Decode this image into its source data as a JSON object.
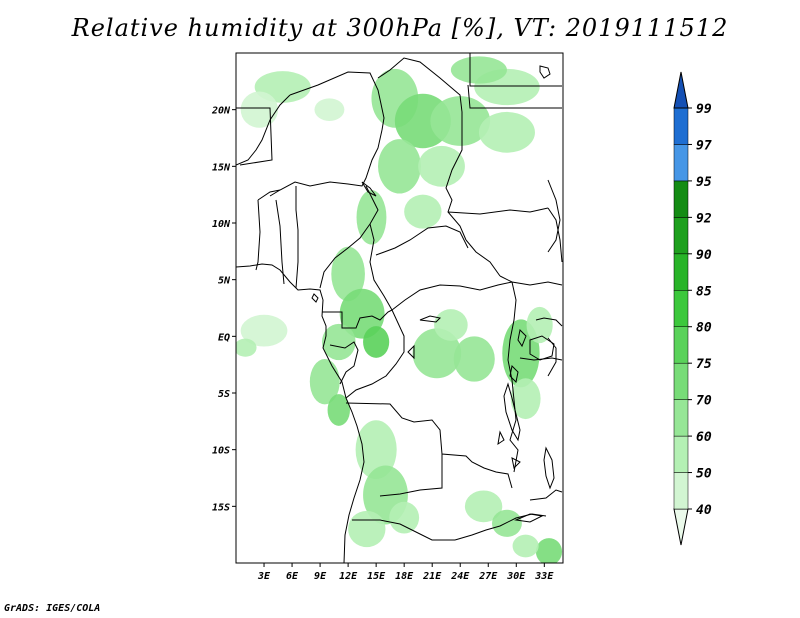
{
  "title": "Relative humidity at 300hPa [%], VT: 2019111512",
  "credit": "GrADS: IGES/COLA",
  "map": {
    "lon_range": [
      0,
      35
    ],
    "lat_range": [
      -20,
      25
    ],
    "x_ticks": [
      {
        "lon": 3,
        "label": "3E"
      },
      {
        "lon": 6,
        "label": "6E"
      },
      {
        "lon": 9,
        "label": "9E"
      },
      {
        "lon": 12,
        "label": "12E"
      },
      {
        "lon": 15,
        "label": "15E"
      },
      {
        "lon": 18,
        "label": "18E"
      },
      {
        "lon": 21,
        "label": "21E"
      },
      {
        "lon": 24,
        "label": "24E"
      },
      {
        "lon": 27,
        "label": "27E"
      },
      {
        "lon": 30,
        "label": "30E"
      },
      {
        "lon": 33,
        "label": "33E"
      }
    ],
    "y_ticks": [
      {
        "lat": 20,
        "label": "20N"
      },
      {
        "lat": 15,
        "label": "15N"
      },
      {
        "lat": 10,
        "label": "10N"
      },
      {
        "lat": 5,
        "label": "5N"
      },
      {
        "lat": 0,
        "label": "EQ"
      },
      {
        "lat": -5,
        "label": "5S"
      },
      {
        "lat": -10,
        "label": "10S"
      },
      {
        "lat": -15,
        "label": "15S"
      }
    ],
    "humidity_patches": [
      {
        "lon": 29,
        "lat": 22,
        "rx": 3.5,
        "ry": 1.6,
        "level": 50
      },
      {
        "lon": 26,
        "lat": 23.5,
        "rx": 3.0,
        "ry": 1.2,
        "level": 60
      },
      {
        "lon": 17,
        "lat": 21,
        "rx": 2.5,
        "ry": 2.6,
        "level": 60
      },
      {
        "lon": 20,
        "lat": 19,
        "rx": 3.0,
        "ry": 2.4,
        "level": 70
      },
      {
        "lon": 24,
        "lat": 19,
        "rx": 3.2,
        "ry": 2.2,
        "level": 60
      },
      {
        "lon": 29,
        "lat": 18,
        "rx": 3.0,
        "ry": 1.8,
        "level": 50
      },
      {
        "lon": 17.5,
        "lat": 15,
        "rx": 2.3,
        "ry": 2.4,
        "level": 60
      },
      {
        "lon": 22,
        "lat": 15,
        "rx": 2.5,
        "ry": 1.8,
        "level": 50
      },
      {
        "lon": 14.5,
        "lat": 10.5,
        "rx": 1.6,
        "ry": 2.4,
        "level": 60
      },
      {
        "lon": 20,
        "lat": 11,
        "rx": 2.0,
        "ry": 1.5,
        "level": 50
      },
      {
        "lon": 5,
        "lat": 22,
        "rx": 3.0,
        "ry": 1.4,
        "level": 50
      },
      {
        "lon": 2.5,
        "lat": 20,
        "rx": 2.0,
        "ry": 1.6,
        "level": 40
      },
      {
        "lon": 10,
        "lat": 20,
        "rx": 1.6,
        "ry": 1.0,
        "level": 40
      },
      {
        "lon": 12,
        "lat": 5.5,
        "rx": 1.8,
        "ry": 2.4,
        "level": 60
      },
      {
        "lon": 13.5,
        "lat": 2,
        "rx": 2.4,
        "ry": 2.2,
        "level": 70
      },
      {
        "lon": 11,
        "lat": -0.5,
        "rx": 1.8,
        "ry": 1.6,
        "level": 60
      },
      {
        "lon": 15,
        "lat": -0.5,
        "rx": 1.4,
        "ry": 1.4,
        "level": 75
      },
      {
        "lon": 9.5,
        "lat": -4,
        "rx": 1.6,
        "ry": 2.0,
        "level": 60
      },
      {
        "lon": 11,
        "lat": -6.5,
        "rx": 1.2,
        "ry": 1.4,
        "level": 70
      },
      {
        "lon": 21.5,
        "lat": -1.5,
        "rx": 2.6,
        "ry": 2.2,
        "level": 60
      },
      {
        "lon": 25.5,
        "lat": -2,
        "rx": 2.2,
        "ry": 2.0,
        "level": 60
      },
      {
        "lon": 23,
        "lat": 1,
        "rx": 1.8,
        "ry": 1.4,
        "level": 50
      },
      {
        "lon": 30.5,
        "lat": -1.5,
        "rx": 2.0,
        "ry": 3.0,
        "level": 70
      },
      {
        "lon": 31,
        "lat": -5.5,
        "rx": 1.6,
        "ry": 1.8,
        "level": 50
      },
      {
        "lon": 32.5,
        "lat": 1,
        "rx": 1.4,
        "ry": 1.6,
        "level": 50
      },
      {
        "lon": 15,
        "lat": -10,
        "rx": 2.2,
        "ry": 2.6,
        "level": 50
      },
      {
        "lon": 16,
        "lat": -14,
        "rx": 2.4,
        "ry": 2.6,
        "level": 60
      },
      {
        "lon": 14,
        "lat": -17,
        "rx": 2.0,
        "ry": 1.6,
        "level": 50
      },
      {
        "lon": 18,
        "lat": -16,
        "rx": 1.6,
        "ry": 1.4,
        "level": 50
      },
      {
        "lon": 26.5,
        "lat": -15,
        "rx": 2.0,
        "ry": 1.4,
        "level": 50
      },
      {
        "lon": 29,
        "lat": -16.5,
        "rx": 1.6,
        "ry": 1.2,
        "level": 60
      },
      {
        "lon": 33.5,
        "lat": -19,
        "rx": 1.4,
        "ry": 1.2,
        "level": 70
      },
      {
        "lon": 31,
        "lat": -18.5,
        "rx": 1.4,
        "ry": 1.0,
        "level": 50
      },
      {
        "lon": 3,
        "lat": 0.5,
        "rx": 2.5,
        "ry": 1.4,
        "level": 40
      },
      {
        "lon": 1,
        "lat": -1,
        "rx": 1.2,
        "ry": 0.8,
        "level": 50
      }
    ]
  },
  "colorbar": {
    "levels": [
      40,
      50,
      60,
      70,
      75,
      80,
      85,
      90,
      92,
      95,
      97,
      99
    ],
    "labels": [
      "40",
      "50",
      "60",
      "70",
      "75",
      "80",
      "85",
      "90",
      "92",
      "95",
      "97",
      "99"
    ],
    "colors": [
      "#ebfaeb",
      "#d2f5d2",
      "#b4f0b4",
      "#96e696",
      "#78dc78",
      "#5ad25a",
      "#3cc83c",
      "#28b428",
      "#1ea01e",
      "#148c14",
      "#4696e6",
      "#1e6ed2",
      "#1450b4"
    ],
    "below_color": "#ffffff"
  }
}
